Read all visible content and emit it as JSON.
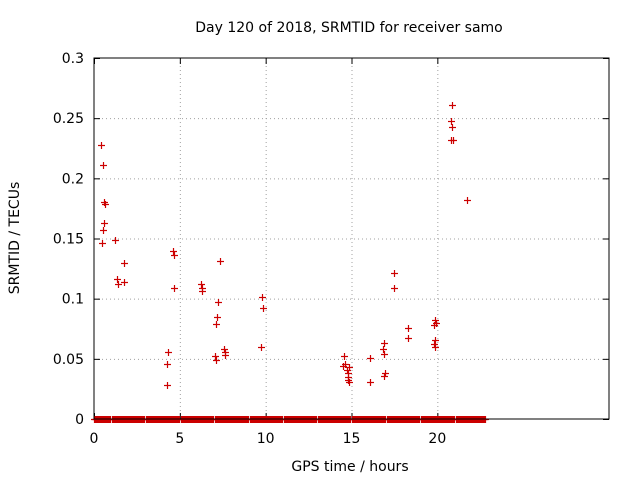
{
  "chart_data": {
    "type": "scatter",
    "title": "Day 120 of 2018, SRMTID for receiver samo",
    "xlabel": "GPS time / hours",
    "ylabel": "SRMTID / TECUs",
    "xlim": [
      0,
      30
    ],
    "ylim": [
      0,
      0.3
    ],
    "xticks": [
      0,
      5,
      10,
      15,
      20
    ],
    "xtick_labels": [
      "0",
      "5",
      "10",
      "15",
      "20"
    ],
    "yticks": [
      0,
      0.05,
      0.1,
      0.15,
      0.2,
      0.25,
      0.3
    ],
    "ytick_labels": [
      "0",
      "0.05",
      "0.1",
      "0.15",
      "0.2",
      "0.25",
      "0.3"
    ],
    "grid": true,
    "marker": "+",
    "colors": {
      "series": "#cc0000",
      "grid": "#a0a0a0",
      "axes": "#000000"
    },
    "zero_band": {
      "x_start": 0.0,
      "x_end": 22.8,
      "y": 0
    },
    "series": [
      {
        "name": "SRMTID",
        "points": [
          [
            0.42,
            0.228
          ],
          [
            0.5,
            0.211
          ],
          [
            0.6,
            0.18
          ],
          [
            0.65,
            0.179
          ],
          [
            0.58,
            0.163
          ],
          [
            0.55,
            0.157
          ],
          [
            0.45,
            0.146
          ],
          [
            1.25,
            0.149
          ],
          [
            1.35,
            0.116
          ],
          [
            1.38,
            0.112
          ],
          [
            1.72,
            0.13
          ],
          [
            1.75,
            0.114
          ],
          [
            4.3,
            0.056
          ],
          [
            4.25,
            0.046
          ],
          [
            4.25,
            0.028
          ],
          [
            4.62,
            0.14
          ],
          [
            4.68,
            0.136
          ],
          [
            4.65,
            0.109
          ],
          [
            6.25,
            0.112
          ],
          [
            6.28,
            0.109
          ],
          [
            6.3,
            0.106
          ],
          [
            7.35,
            0.131
          ],
          [
            7.2,
            0.097
          ],
          [
            7.15,
            0.085
          ],
          [
            7.1,
            0.079
          ],
          [
            7.05,
            0.052
          ],
          [
            7.1,
            0.049
          ],
          [
            7.6,
            0.058
          ],
          [
            7.65,
            0.056
          ],
          [
            7.62,
            0.053
          ],
          [
            9.78,
            0.101
          ],
          [
            9.82,
            0.092
          ],
          [
            9.75,
            0.06
          ],
          [
            14.55,
            0.052
          ],
          [
            14.6,
            0.046
          ],
          [
            14.5,
            0.044
          ],
          [
            14.75,
            0.041
          ],
          [
            14.85,
            0.043
          ],
          [
            14.82,
            0.038
          ],
          [
            14.8,
            0.035
          ],
          [
            14.78,
            0.032
          ],
          [
            14.85,
            0.031
          ],
          [
            16.1,
            0.051
          ],
          [
            16.05,
            0.031
          ],
          [
            16.9,
            0.063
          ],
          [
            16.85,
            0.058
          ],
          [
            16.9,
            0.054
          ],
          [
            16.95,
            0.038
          ],
          [
            16.9,
            0.036
          ],
          [
            17.5,
            0.121
          ],
          [
            17.45,
            0.109
          ],
          [
            18.3,
            0.076
          ],
          [
            18.3,
            0.067
          ],
          [
            19.85,
            0.082
          ],
          [
            19.9,
            0.08
          ],
          [
            19.8,
            0.078
          ],
          [
            19.85,
            0.066
          ],
          [
            19.82,
            0.062
          ],
          [
            19.88,
            0.06
          ],
          [
            20.85,
            0.261
          ],
          [
            20.8,
            0.248
          ],
          [
            20.85,
            0.243
          ],
          [
            20.8,
            0.232
          ],
          [
            20.9,
            0.232
          ],
          [
            21.7,
            0.182
          ]
        ]
      }
    ]
  }
}
